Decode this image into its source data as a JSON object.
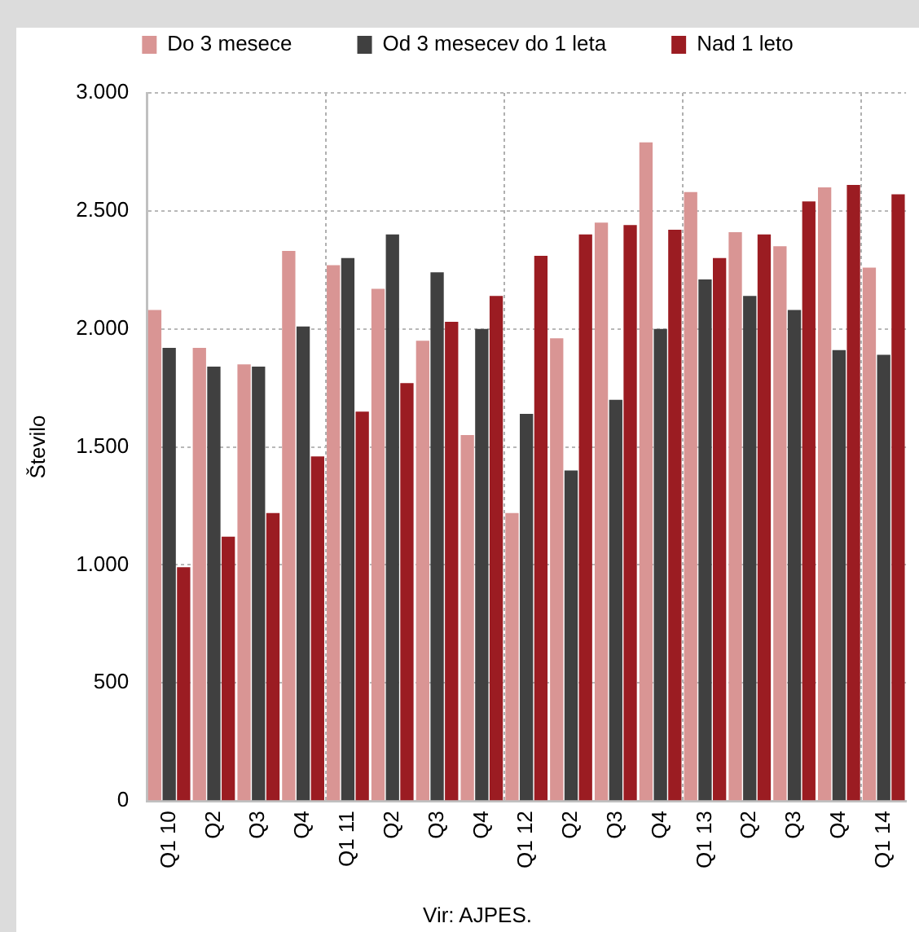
{
  "chart_data": {
    "type": "bar",
    "categories": [
      "Q1 10",
      "Q2",
      "Q3",
      "Q4",
      "Q1 11",
      "Q2",
      "Q3",
      "Q4",
      "Q1 12",
      "Q2",
      "Q3",
      "Q4",
      "Q1 13",
      "Q2",
      "Q3",
      "Q4",
      "Q1 14"
    ],
    "series": [
      {
        "name": "Do 3 mesece",
        "color": "#d99594",
        "values": [
          2080,
          1920,
          1850,
          2330,
          2270,
          2170,
          1950,
          1550,
          1220,
          1960,
          2450,
          2790,
          2580,
          2410,
          2350,
          2600,
          2260
        ]
      },
      {
        "name": "Od 3 mesecev do 1 leta",
        "color": "#404040",
        "values": [
          1920,
          1840,
          1840,
          2010,
          2300,
          2400,
          2240,
          2000,
          1640,
          1400,
          1700,
          2000,
          2210,
          2140,
          2080,
          1910,
          1890
        ]
      },
      {
        "name": "Nad 1 leto",
        "color": "#9b1c22",
        "values": [
          990,
          1120,
          1220,
          1460,
          1650,
          1770,
          2030,
          2140,
          2310,
          2400,
          2440,
          2420,
          2300,
          2400,
          2540,
          2610,
          2570
        ]
      }
    ],
    "ylabel": "Število",
    "ylim": [
      0,
      3000
    ],
    "yticks": [
      0,
      500,
      {
        "value": 1000,
        "label": "1.000"
      },
      {
        "value": 1500,
        "label": "1.500"
      },
      {
        "value": 2000,
        "label": "2.000"
      },
      {
        "value": 2500,
        "label": "2.500"
      },
      {
        "value": 3000,
        "label": "3.000"
      }
    ],
    "grid": true,
    "legend": "top",
    "annotations": [
      "Vir: AJPES."
    ]
  }
}
